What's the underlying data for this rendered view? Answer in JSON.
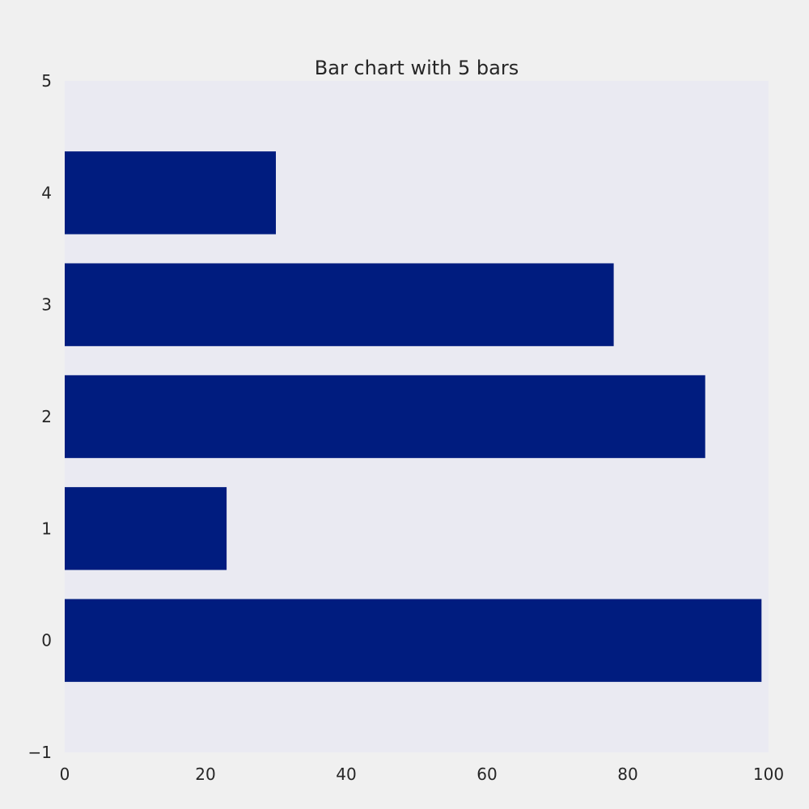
{
  "chart_data": {
    "type": "bar",
    "orientation": "horizontal",
    "title": "Bar chart with 5 bars",
    "categories": [
      "0",
      "1",
      "2",
      "3",
      "4"
    ],
    "values": [
      99,
      23,
      91,
      78,
      30
    ],
    "xlim": [
      0,
      100
    ],
    "ylim": [
      -1,
      5
    ],
    "xticks": [
      "0",
      "20",
      "40",
      "60",
      "80",
      "100"
    ],
    "yticks": [
      "−1",
      "0",
      "1",
      "2",
      "3",
      "4",
      "5"
    ],
    "bar_color": "#001c7f",
    "plot_background": "#eaeaf2",
    "grid": false,
    "legend": "none"
  }
}
